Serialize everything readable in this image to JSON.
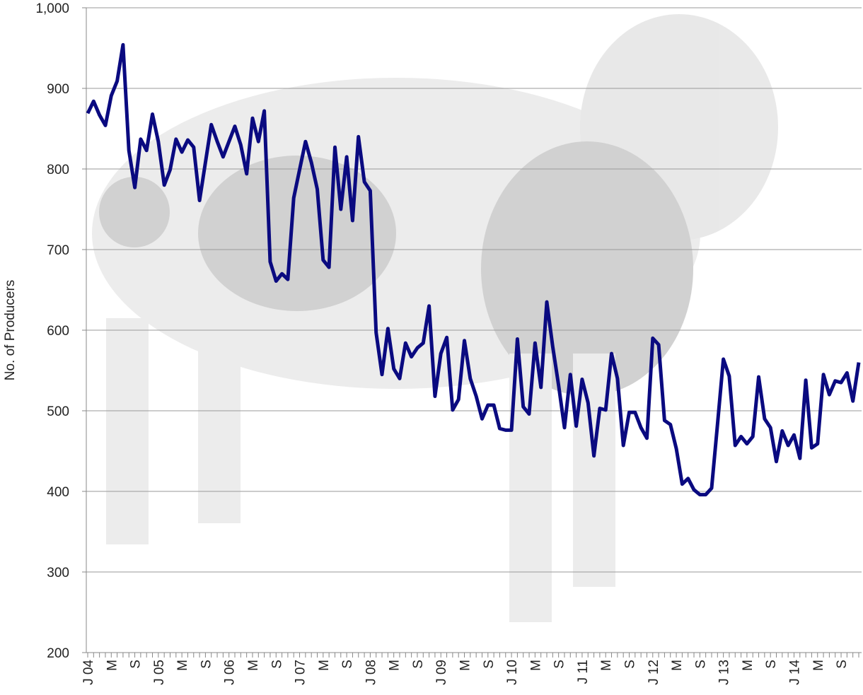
{
  "chart_data": {
    "type": "line",
    "y_label": "No. of Producers",
    "categories": [
      "J 04",
      null,
      null,
      null,
      "M",
      null,
      null,
      null,
      "S",
      null,
      null,
      null,
      "J 05",
      null,
      null,
      null,
      "M",
      null,
      null,
      null,
      "S",
      null,
      null,
      null,
      "J 06",
      null,
      null,
      null,
      "M",
      null,
      null,
      null,
      "S",
      null,
      null,
      null,
      "J 07",
      null,
      null,
      null,
      "M",
      null,
      null,
      null,
      "S",
      null,
      null,
      null,
      "J 08",
      null,
      null,
      null,
      "M",
      null,
      null,
      null,
      "S",
      null,
      null,
      null,
      "J 09",
      null,
      null,
      null,
      "M",
      null,
      null,
      null,
      "S",
      null,
      null,
      null,
      "J 10",
      null,
      null,
      null,
      "M",
      null,
      null,
      null,
      "S",
      null,
      null,
      null,
      "J 11",
      null,
      null,
      null,
      "M",
      null,
      null,
      null,
      "S",
      null,
      null,
      null,
      "J 12",
      null,
      null,
      null,
      "M",
      null,
      null,
      null,
      "S",
      null,
      null,
      null,
      "J 13",
      null,
      null,
      null,
      "M",
      null,
      null,
      null,
      "S",
      null,
      null,
      null,
      "J 14",
      null,
      null,
      null,
      "M",
      null,
      null,
      null,
      "S",
      null,
      null,
      null
    ],
    "series": [
      {
        "name": "No. of Producers",
        "color": "#0a0a80",
        "values": [
          869,
          884,
          867,
          854,
          891,
          909,
          954,
          823,
          777,
          837,
          823,
          868,
          834,
          780,
          799,
          837,
          821,
          836,
          827,
          761,
          808,
          855,
          834,
          815,
          834,
          853,
          830,
          794,
          863,
          834,
          872,
          685,
          661,
          670,
          663,
          764,
          799,
          834,
          808,
          775,
          687,
          678,
          827,
          750,
          815,
          736,
          840,
          784,
          773,
          597,
          545,
          602,
          552,
          540,
          584,
          567,
          578,
          584,
          630,
          518,
          571,
          591,
          501,
          514,
          587,
          540,
          518,
          490,
          507,
          507,
          478,
          476,
          476,
          589,
          505,
          496,
          584,
          529,
          635,
          580,
          532,
          479,
          545,
          481,
          539,
          510,
          444,
          503,
          501,
          571,
          540,
          457,
          498,
          498,
          479,
          466,
          590,
          582,
          488,
          483,
          453,
          409,
          416,
          402,
          396,
          396,
          404,
          483,
          564,
          543,
          457,
          468,
          459,
          468,
          542,
          490,
          479,
          437,
          475,
          457,
          470,
          441,
          538,
          454,
          459,
          545,
          520,
          537,
          535,
          547,
          512,
          560
        ]
      }
    ],
    "ylim": [
      200,
      1000
    ],
    "yticks": [
      200,
      300,
      400,
      500,
      600,
      700,
      800,
      900,
      {
        "value": 1000,
        "label": "1,000"
      }
    ],
    "grid": true
  }
}
